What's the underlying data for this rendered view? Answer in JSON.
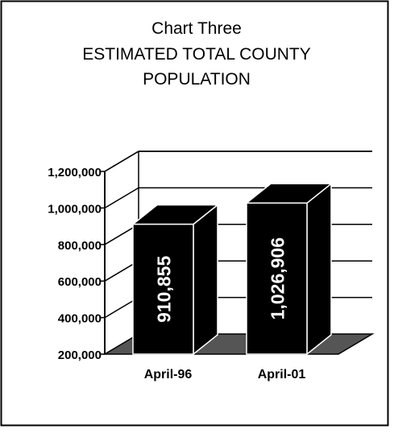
{
  "chart_data": {
    "type": "bar",
    "title": "Chart Three",
    "subtitle_lines": [
      "ESTIMATED TOTAL COUNTY",
      "POPULATION"
    ],
    "categories": [
      "April-96",
      "April-01"
    ],
    "values": [
      910855,
      1026906
    ],
    "value_labels": [
      "910,855",
      "1,026,906"
    ],
    "y_ticks": [
      "200,000",
      "400,000",
      "600,000",
      "800,000",
      "1,000,000",
      "1,200,000"
    ],
    "ylim": [
      200000,
      1200000
    ],
    "xlabel": "",
    "ylabel": "",
    "grid": true,
    "three_d": true,
    "colors": {
      "bar_front": "#000000",
      "bar_side": "#000000",
      "bar_edge": "#ffffff",
      "floor": "#555555",
      "text": "#000000",
      "value_label": "#ffffff"
    }
  }
}
